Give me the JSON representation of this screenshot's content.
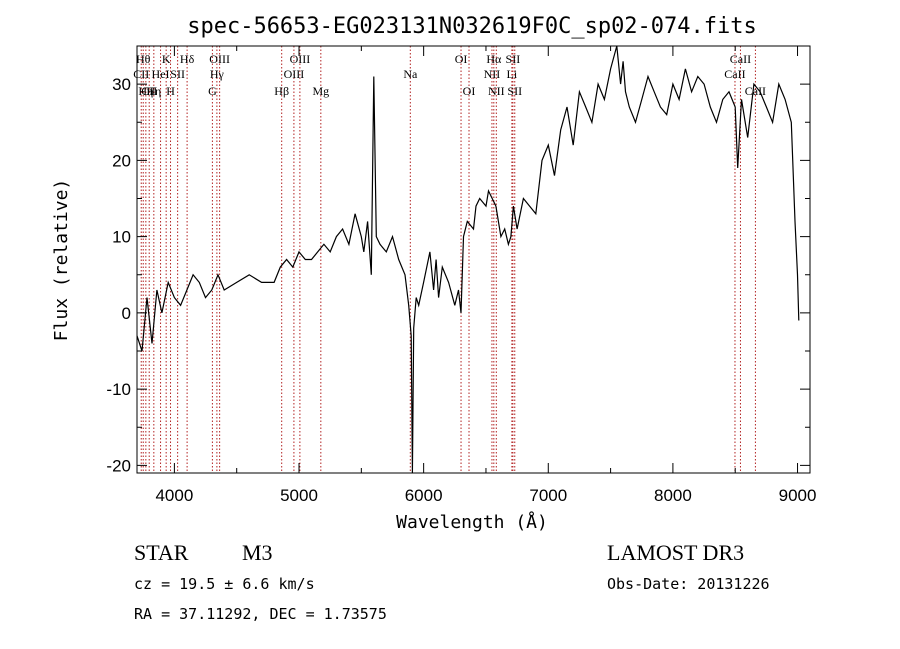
{
  "chart_data": {
    "type": "line",
    "title": "spec-56653-EG023131N032619F0C_sp02-074.fits",
    "xlabel": "Wavelength (Å)",
    "ylabel": "Flux (relative)",
    "xlim": [
      3700,
      9100
    ],
    "ylim": [
      -21,
      35
    ],
    "xticks": [
      4000,
      5000,
      6000,
      7000,
      8000,
      9000
    ],
    "yticks": [
      -20,
      -10,
      0,
      10,
      20,
      30
    ],
    "series": [
      {
        "name": "spectrum",
        "x": [
          3700,
          3740,
          3780,
          3820,
          3860,
          3900,
          3950,
          4000,
          4050,
          4100,
          4150,
          4200,
          4250,
          4300,
          4350,
          4400,
          4500,
          4600,
          4700,
          4800,
          4850,
          4900,
          4950,
          5000,
          5050,
          5100,
          5150,
          5200,
          5250,
          5300,
          5350,
          5400,
          5450,
          5500,
          5520,
          5550,
          5580,
          5600,
          5620,
          5650,
          5700,
          5750,
          5800,
          5850,
          5880,
          5900,
          5910,
          5920,
          5940,
          5960,
          6000,
          6050,
          6080,
          6100,
          6120,
          6150,
          6200,
          6250,
          6280,
          6300,
          6320,
          6350,
          6400,
          6420,
          6450,
          6500,
          6520,
          6550,
          6580,
          6600,
          6620,
          6650,
          6680,
          6700,
          6720,
          6750,
          6800,
          6850,
          6900,
          6950,
          7000,
          7050,
          7100,
          7150,
          7200,
          7250,
          7300,
          7350,
          7400,
          7450,
          7500,
          7550,
          7580,
          7600,
          7620,
          7650,
          7700,
          7750,
          7800,
          7850,
          7900,
          7950,
          8000,
          8050,
          8100,
          8150,
          8200,
          8250,
          8300,
          8350,
          8400,
          8450,
          8500,
          8520,
          8550,
          8600,
          8650,
          8700,
          8750,
          8800,
          8850,
          8900,
          8950,
          8980,
          9000,
          9010
        ],
        "values": [
          -3,
          -5,
          2,
          -4,
          3,
          0,
          4,
          2,
          1,
          3,
          5,
          4,
          2,
          3,
          5,
          3,
          4,
          5,
          4,
          4,
          6,
          7,
          6,
          8,
          7,
          7,
          8,
          9,
          8,
          10,
          11,
          9,
          13,
          10,
          8,
          12,
          5,
          31,
          10,
          9,
          8,
          10,
          7,
          5,
          1,
          -3,
          -21,
          -2,
          2,
          1,
          4,
          8,
          3,
          7,
          2,
          6,
          4,
          1,
          3,
          0,
          10,
          12,
          11,
          14,
          15,
          14,
          16,
          15,
          14,
          12,
          10,
          11,
          9,
          10,
          14,
          11,
          15,
          14,
          13,
          20,
          22,
          18,
          24,
          27,
          22,
          29,
          27,
          25,
          30,
          28,
          32,
          35,
          30,
          33,
          29,
          27,
          25,
          28,
          31,
          29,
          27,
          26,
          30,
          28,
          32,
          29,
          31,
          30,
          27,
          25,
          28,
          29,
          27,
          19,
          28,
          23,
          30,
          29,
          27,
          25,
          30,
          28,
          25,
          12,
          5,
          -1
        ]
      }
    ],
    "lines": [
      {
        "wl": 3734,
        "label": "CII",
        "row": 2
      },
      {
        "wl": 3750,
        "label": "Hθ",
        "row": 1
      },
      {
        "wl": 3771,
        "label": "Hη",
        "row": 3
      },
      {
        "wl": 3798,
        "label": "CII",
        "row": 3
      },
      {
        "wl": 3835,
        "label": "Hη",
        "row": 3
      },
      {
        "wl": 3889,
        "label": "HeI",
        "row": 2
      },
      {
        "wl": 3934,
        "label": "K",
        "row": 1
      },
      {
        "wl": 3969,
        "label": "H",
        "row": 3
      },
      {
        "wl": 4026,
        "label": "SII",
        "row": 2
      },
      {
        "wl": 4102,
        "label": "Hδ",
        "row": 1
      },
      {
        "wl": 4305,
        "label": "G",
        "row": 3
      },
      {
        "wl": 4341,
        "label": "Hγ",
        "row": 2
      },
      {
        "wl": 4363,
        "label": "OIII",
        "row": 1
      },
      {
        "wl": 4861,
        "label": "Hβ",
        "row": 3
      },
      {
        "wl": 4959,
        "label": "OIII",
        "row": 2
      },
      {
        "wl": 5007,
        "label": "OIII",
        "row": 1
      },
      {
        "wl": 5175,
        "label": "Mg",
        "row": 3
      },
      {
        "wl": 5893,
        "label": "Na",
        "row": 2
      },
      {
        "wl": 6300,
        "label": "OI",
        "row": 1
      },
      {
        "wl": 6364,
        "label": "OI",
        "row": 3
      },
      {
        "wl": 6548,
        "label": "NII",
        "row": 2
      },
      {
        "wl": 6563,
        "label": "Hα",
        "row": 1
      },
      {
        "wl": 6583,
        "label": "NII",
        "row": 3
      },
      {
        "wl": 6708,
        "label": "Li",
        "row": 2
      },
      {
        "wl": 6716,
        "label": "SII",
        "row": 1
      },
      {
        "wl": 6731,
        "label": "SII",
        "row": 3
      },
      {
        "wl": 8498,
        "label": "CaII",
        "row": 2
      },
      {
        "wl": 8542,
        "label": "CaII",
        "row": 1
      },
      {
        "wl": 8662,
        "label": "CaII",
        "row": 3
      }
    ]
  },
  "info": {
    "obj_class": "STAR",
    "subclass": "M3",
    "survey": "LAMOST DR3",
    "cz": "cz = 19.5 ± 6.6 km/s",
    "obs_date": "Obs-Date: 20131226",
    "radec": "RA =  37.11292, DEC =   1.73575"
  },
  "colors": {
    "axis": "#000000",
    "spectrum": "#000000",
    "line_marker": "#b22222"
  }
}
